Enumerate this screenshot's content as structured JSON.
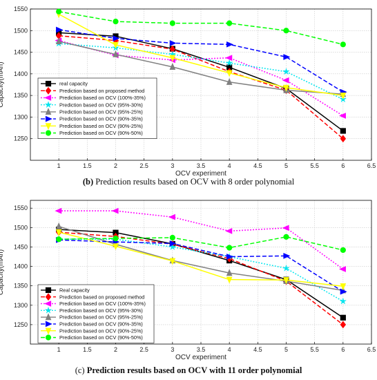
{
  "chart_data": [
    {
      "type": "line",
      "caption_letter": "(b)",
      "caption_text": "Prediction results based on OCV with 8 order polynomial",
      "xlabel": "OCV experiment",
      "ylabel": "Capacity(mAh)",
      "xlim": [
        0.5,
        6.5
      ],
      "ylim": [
        1200,
        1550
      ],
      "xticks": [
        "1",
        "1.5",
        "2",
        "2.5",
        "3",
        "3.5",
        "4",
        "4.5",
        "5",
        "5.5",
        "6",
        "6.5"
      ],
      "yticks": [
        "1250",
        "1300",
        "1350",
        "1400",
        "1450",
        "1500",
        "1550"
      ],
      "grid": true,
      "legend_position": "lower-left",
      "x": [
        1,
        2,
        3,
        4,
        5,
        6
      ],
      "series": [
        {
          "name": "real capacity",
          "color": "#000000",
          "dash": "solid",
          "marker": "square",
          "values": [
            1495,
            1487,
            1458,
            1415,
            1366,
            1268
          ]
        },
        {
          "name": "Prediction based on proposed method",
          "color": "#ff0000",
          "dash": "dashed",
          "marker": "diamond",
          "values": [
            1488,
            1477,
            1457,
            1405,
            1362,
            1250
          ]
        },
        {
          "name": "Prediction based on OCV (100%-35%)",
          "color": "#ff00ff",
          "dash": "dotted",
          "marker": "triangle-left",
          "values": [
            1477,
            1443,
            1432,
            1437,
            1385,
            1303
          ]
        },
        {
          "name": "Prediction based on OCV (95%-30%)",
          "color": "#00e5ee",
          "dash": "dotted",
          "marker": "star",
          "values": [
            1470,
            1460,
            1445,
            1425,
            1405,
            1341
          ]
        },
        {
          "name": "Prediction based on OCV (95%-25%)",
          "color": "#808080",
          "dash": "solid",
          "marker": "triangle-up",
          "values": [
            1475,
            1445,
            1416,
            1381,
            1362,
            1353
          ]
        },
        {
          "name": "Prediction based on OCV (90%-35%)",
          "color": "#0000ff",
          "dash": "dashed",
          "marker": "triangle-right",
          "values": [
            1502,
            1482,
            1471,
            1468,
            1439,
            1358
          ]
        },
        {
          "name": "Prediction based on OCV (90%-25%)",
          "color": "#ffff00",
          "dash": "solid",
          "marker": "triangle-down",
          "values": [
            1538,
            1467,
            1437,
            1402,
            1368,
            1350
          ]
        },
        {
          "name": "Prediction based on OCV (90%-50%)",
          "color": "#00ff00",
          "dash": "dashed",
          "marker": "circle",
          "values": [
            1544,
            1521,
            1517,
            1517,
            1500,
            1468
          ]
        }
      ]
    },
    {
      "type": "line",
      "caption_letter": "(c)",
      "caption_text": "Prediction results based on OCV with 11 order polynomial",
      "xlabel": "OCV experiment",
      "ylabel": "Capacity(mAh)",
      "xlim": [
        0.5,
        6.5
      ],
      "ylim": [
        1200,
        1570
      ],
      "xticks": [
        "1",
        "1.5",
        "2",
        "2.5",
        "3",
        "3.5",
        "4",
        "4.5",
        "5",
        "5.5",
        "6",
        "6.5"
      ],
      "yticks": [
        "1250",
        "1300",
        "1350",
        "1400",
        "1450",
        "1500",
        "1550"
      ],
      "grid": true,
      "legend_position": "lower-left",
      "x": [
        1,
        2,
        3,
        4,
        5,
        6
      ],
      "series": [
        {
          "name": "Real capacity",
          "color": "#000000",
          "dash": "solid",
          "marker": "square",
          "values": [
            1495,
            1487,
            1458,
            1415,
            1366,
            1268
          ]
        },
        {
          "name": "Prediction based on proposed method",
          "color": "#ff0000",
          "dash": "dashed",
          "marker": "diamond",
          "values": [
            1488,
            1477,
            1457,
            1420,
            1362,
            1250
          ]
        },
        {
          "name": "Prediction based on OCV (100%-35%)",
          "color": "#ff00ff",
          "dash": "dotted",
          "marker": "triangle-left",
          "values": [
            1543,
            1543,
            1527,
            1491,
            1499,
            1393
          ]
        },
        {
          "name": "Prediction based on OCV (95%-30%)",
          "color": "#00e5ee",
          "dash": "dotted",
          "marker": "star",
          "values": [
            1470,
            1470,
            1450,
            1425,
            1395,
            1310
          ]
        },
        {
          "name": "Prediction based on OCV (95%-25%)",
          "color": "#808080",
          "dash": "solid",
          "marker": "triangle-up",
          "values": [
            1503,
            1457,
            1415,
            1383,
            1362,
            1338
          ]
        },
        {
          "name": "Prediction based on OCV (90%-35%)",
          "color": "#0000ff",
          "dash": "dashed",
          "marker": "triangle-right",
          "values": [
            1468,
            1463,
            1459,
            1425,
            1427,
            1335
          ]
        },
        {
          "name": "Prediction based on OCV (90%-25%)",
          "color": "#ffff00",
          "dash": "solid",
          "marker": "triangle-down",
          "values": [
            1488,
            1452,
            1414,
            1366,
            1365,
            1349
          ]
        },
        {
          "name": "Prediction based on OCV (90%-50%)",
          "color": "#00ff00",
          "dash": "dashed",
          "marker": "circle",
          "values": [
            1470,
            1472,
            1474,
            1448,
            1476,
            1442
          ]
        }
      ]
    }
  ]
}
